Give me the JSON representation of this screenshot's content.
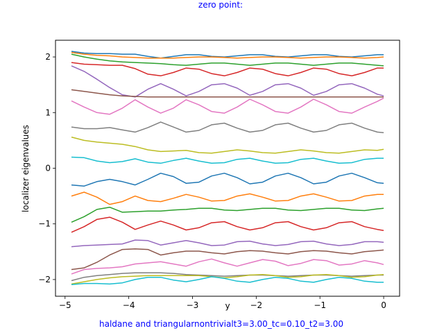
{
  "top_annotation": "zero point:",
  "bottom_annotation": "haldane and triangularnontrivialt3=3.00_tc=0.10_t2=3.00",
  "chart_data": {
    "type": "line",
    "title": "",
    "xlabel": "y",
    "ylabel": "localizer eigenvalues",
    "xlim": [
      -5.15,
      0.25
    ],
    "ylim": [
      -2.3,
      2.3
    ],
    "xticks": [
      -5,
      -4,
      -3,
      -2,
      -1,
      0
    ],
    "xtick_labels": [
      "−5",
      "−4",
      "−3",
      "−2",
      "−1",
      "0"
    ],
    "yticks": [
      -2,
      -1,
      0,
      1,
      2
    ],
    "ytick_labels": [
      "−2",
      "−1",
      "0",
      "1",
      "2"
    ],
    "grid": false,
    "legend": "none",
    "x": [
      -4.9,
      -4.7,
      -4.5,
      -4.3,
      -4.1,
      -3.9,
      -3.7,
      -3.5,
      -3.3,
      -3.1,
      -2.9,
      -2.7,
      -2.5,
      -2.3,
      -2.1,
      -1.9,
      -1.7,
      -1.5,
      -1.3,
      -1.1,
      -0.9,
      -0.7,
      -0.5,
      -0.3,
      -0.1,
      0.0
    ],
    "series": [
      {
        "color": "#1f77b4",
        "values": [
          2.1,
          2.07,
          2.06,
          2.06,
          2.05,
          2.05,
          2.01,
          1.98,
          2.01,
          2.04,
          2.04,
          2.01,
          2.0,
          2.02,
          2.04,
          2.04,
          2.01,
          2.0,
          2.02,
          2.04,
          2.04,
          2.01,
          2.0,
          2.02,
          2.04,
          2.04
        ]
      },
      {
        "color": "#ff7f0e",
        "values": [
          2.08,
          2.05,
          2.03,
          2.02,
          2.0,
          1.99,
          1.98,
          1.98,
          1.98,
          1.99,
          2.0,
          2.0,
          1.99,
          1.98,
          1.99,
          2.0,
          2.0,
          1.99,
          1.98,
          1.99,
          2.0,
          2.0,
          1.99,
          1.98,
          1.99,
          2.0
        ]
      },
      {
        "color": "#2ca02c",
        "values": [
          2.05,
          2.0,
          1.96,
          1.93,
          1.91,
          1.9,
          1.89,
          1.88,
          1.86,
          1.85,
          1.87,
          1.89,
          1.89,
          1.87,
          1.85,
          1.87,
          1.89,
          1.89,
          1.87,
          1.85,
          1.87,
          1.89,
          1.89,
          1.87,
          1.85,
          1.84
        ]
      },
      {
        "color": "#d62728",
        "values": [
          1.9,
          1.87,
          1.86,
          1.85,
          1.85,
          1.79,
          1.69,
          1.66,
          1.72,
          1.8,
          1.78,
          1.7,
          1.66,
          1.72,
          1.8,
          1.78,
          1.7,
          1.66,
          1.72,
          1.8,
          1.78,
          1.7,
          1.66,
          1.72,
          1.8,
          1.8
        ]
      },
      {
        "color": "#9467bd",
        "values": [
          1.84,
          1.74,
          1.6,
          1.45,
          1.32,
          1.28,
          1.42,
          1.52,
          1.42,
          1.3,
          1.38,
          1.5,
          1.52,
          1.44,
          1.31,
          1.38,
          1.5,
          1.52,
          1.44,
          1.31,
          1.38,
          1.5,
          1.52,
          1.44,
          1.33,
          1.3
        ]
      },
      {
        "color": "#8c564b",
        "values": [
          1.41,
          1.38,
          1.35,
          1.32,
          1.3,
          1.29,
          1.28,
          1.28,
          1.28,
          1.28,
          1.28,
          1.28,
          1.28,
          1.28,
          1.28,
          1.28,
          1.28,
          1.28,
          1.28,
          1.28,
          1.28,
          1.28,
          1.28,
          1.28,
          1.28,
          1.28
        ]
      },
      {
        "color": "#e377c2",
        "values": [
          1.21,
          1.1,
          1.0,
          0.97,
          1.08,
          1.23,
          1.1,
          0.99,
          1.08,
          1.23,
          1.14,
          1.02,
          0.99,
          1.1,
          1.24,
          1.14,
          1.02,
          0.99,
          1.1,
          1.24,
          1.14,
          1.02,
          0.99,
          1.1,
          1.2,
          1.26
        ]
      },
      {
        "color": "#7f7f7f",
        "values": [
          0.74,
          0.71,
          0.71,
          0.73,
          0.69,
          0.65,
          0.73,
          0.83,
          0.74,
          0.65,
          0.68,
          0.78,
          0.81,
          0.72,
          0.65,
          0.68,
          0.78,
          0.81,
          0.72,
          0.65,
          0.68,
          0.78,
          0.81,
          0.72,
          0.65,
          0.64
        ]
      },
      {
        "color": "#bcbd22",
        "values": [
          0.56,
          0.5,
          0.47,
          0.45,
          0.43,
          0.39,
          0.33,
          0.3,
          0.31,
          0.32,
          0.28,
          0.27,
          0.3,
          0.33,
          0.31,
          0.28,
          0.27,
          0.3,
          0.33,
          0.31,
          0.28,
          0.27,
          0.3,
          0.33,
          0.32,
          0.34
        ]
      },
      {
        "color": "#17becf",
        "values": [
          0.2,
          0.19,
          0.13,
          0.1,
          0.12,
          0.17,
          0.11,
          0.09,
          0.14,
          0.18,
          0.13,
          0.09,
          0.1,
          0.16,
          0.18,
          0.13,
          0.09,
          0.1,
          0.16,
          0.18,
          0.13,
          0.09,
          0.1,
          0.16,
          0.18,
          0.18
        ]
      },
      {
        "color": "#1f77b4",
        "values": [
          -0.3,
          -0.32,
          -0.24,
          -0.2,
          -0.24,
          -0.3,
          -0.2,
          -0.09,
          -0.15,
          -0.27,
          -0.25,
          -0.14,
          -0.09,
          -0.17,
          -0.28,
          -0.25,
          -0.14,
          -0.09,
          -0.17,
          -0.28,
          -0.25,
          -0.14,
          -0.09,
          -0.17,
          -0.26,
          -0.27
        ]
      },
      {
        "color": "#ff7f0e",
        "values": [
          -0.5,
          -0.43,
          -0.52,
          -0.65,
          -0.6,
          -0.5,
          -0.58,
          -0.6,
          -0.54,
          -0.47,
          -0.52,
          -0.59,
          -0.58,
          -0.5,
          -0.46,
          -0.52,
          -0.59,
          -0.58,
          -0.5,
          -0.46,
          -0.52,
          -0.59,
          -0.58,
          -0.5,
          -0.47,
          -0.47
        ]
      },
      {
        "color": "#2ca02c",
        "values": [
          -0.97,
          -0.87,
          -0.74,
          -0.7,
          -0.79,
          -0.78,
          -0.77,
          -0.77,
          -0.75,
          -0.74,
          -0.72,
          -0.72,
          -0.75,
          -0.76,
          -0.74,
          -0.72,
          -0.72,
          -0.75,
          -0.76,
          -0.74,
          -0.72,
          -0.72,
          -0.75,
          -0.76,
          -0.73,
          -0.72
        ]
      },
      {
        "color": "#d62728",
        "values": [
          -1.15,
          -1.05,
          -0.92,
          -0.88,
          -0.97,
          -1.1,
          -1.02,
          -0.95,
          -1.02,
          -1.11,
          -1.07,
          -0.98,
          -0.96,
          -1.05,
          -1.11,
          -1.07,
          -0.98,
          -0.96,
          -1.05,
          -1.11,
          -1.07,
          -0.98,
          -0.96,
          -1.05,
          -1.1,
          -1.12
        ]
      },
      {
        "color": "#9467bd",
        "values": [
          -1.41,
          -1.39,
          -1.38,
          -1.37,
          -1.36,
          -1.29,
          -1.3,
          -1.38,
          -1.34,
          -1.3,
          -1.34,
          -1.39,
          -1.38,
          -1.32,
          -1.31,
          -1.36,
          -1.39,
          -1.37,
          -1.32,
          -1.31,
          -1.36,
          -1.39,
          -1.37,
          -1.32,
          -1.32,
          -1.33
        ]
      },
      {
        "color": "#8c564b",
        "values": [
          -1.82,
          -1.79,
          -1.69,
          -1.56,
          -1.46,
          -1.45,
          -1.46,
          -1.56,
          -1.52,
          -1.49,
          -1.49,
          -1.52,
          -1.54,
          -1.5,
          -1.48,
          -1.49,
          -1.52,
          -1.54,
          -1.5,
          -1.48,
          -1.49,
          -1.52,
          -1.54,
          -1.5,
          -1.48,
          -1.47
        ]
      },
      {
        "color": "#e377c2",
        "values": [
          -1.9,
          -1.82,
          -1.8,
          -1.79,
          -1.77,
          -1.72,
          -1.7,
          -1.68,
          -1.72,
          -1.76,
          -1.68,
          -1.63,
          -1.7,
          -1.76,
          -1.7,
          -1.64,
          -1.67,
          -1.75,
          -1.71,
          -1.64,
          -1.66,
          -1.74,
          -1.72,
          -1.66,
          -1.7,
          -1.73
        ]
      },
      {
        "color": "#7f7f7f",
        "values": [
          -2.02,
          -1.96,
          -1.93,
          -1.91,
          -1.89,
          -1.88,
          -1.88,
          -1.88,
          -1.89,
          -1.91,
          -1.92,
          -1.93,
          -1.94,
          -1.93,
          -1.92,
          -1.92,
          -1.93,
          -1.94,
          -1.93,
          -1.92,
          -1.92,
          -1.93,
          -1.94,
          -1.93,
          -1.92,
          -1.92
        ]
      },
      {
        "color": "#bcbd22",
        "values": [
          -2.08,
          -2.04,
          -2.0,
          -1.97,
          -1.95,
          -1.94,
          -1.93,
          -1.93,
          -1.93,
          -1.93,
          -1.93,
          -1.95,
          -1.97,
          -1.95,
          -1.92,
          -1.91,
          -1.93,
          -1.96,
          -1.95,
          -1.92,
          -1.91,
          -1.93,
          -1.96,
          -1.95,
          -1.92,
          -1.91
        ]
      },
      {
        "color": "#17becf",
        "values": [
          -2.09,
          -2.07,
          -2.07,
          -2.08,
          -2.06,
          -2.0,
          -1.96,
          -1.96,
          -2.01,
          -2.04,
          -2.0,
          -1.95,
          -1.98,
          -2.03,
          -2.05,
          -2.0,
          -1.96,
          -1.98,
          -2.03,
          -2.05,
          -2.0,
          -1.96,
          -1.98,
          -2.03,
          -2.05,
          -2.05
        ]
      }
    ]
  }
}
